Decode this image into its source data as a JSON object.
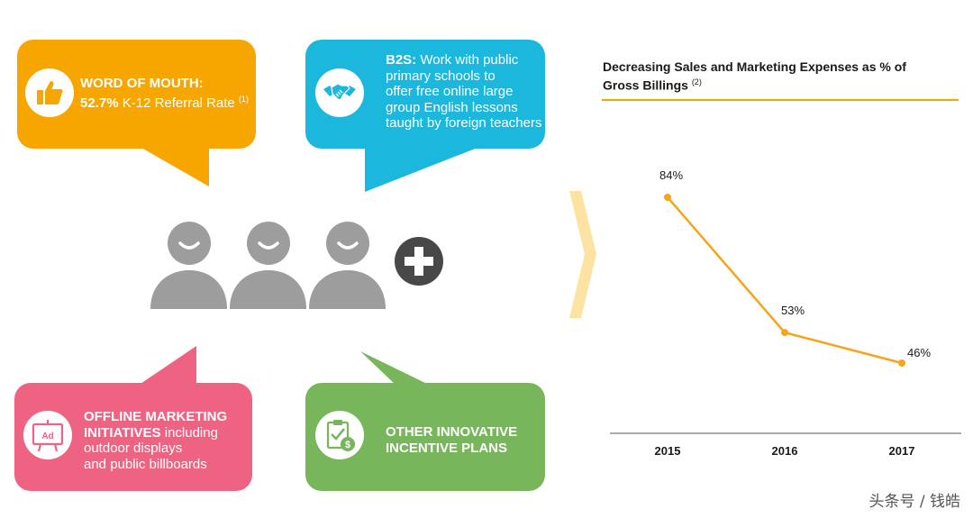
{
  "colors": {
    "orange": "#f7a600",
    "blue": "#1bb7dc",
    "pink": "#ef6382",
    "green": "#77b65b",
    "person": "#9d9d9d",
    "plus": "#484848",
    "arrow": "#fde3a1",
    "line": "#f6a41b"
  },
  "bubbles": {
    "word_of_mouth": {
      "title": "WORD OF MOUTH:",
      "stat": "52.7%",
      "stat_text": " K-12 Referral Rate ",
      "note": "(1)",
      "icon": "thumbs-up-icon"
    },
    "b2s": {
      "title": "B2S:",
      "lines": [
        "Work with public",
        "primary schools to",
        "offer free online large",
        "group English lessons",
        "taught by foreign teachers"
      ],
      "icon": "handshake-icon"
    },
    "offline": {
      "title_line1": "OFFLINE MARKETING",
      "title_line2": "INITIATIVES",
      "rest_line2": " including",
      "lines": [
        "outdoor displays",
        "and public billboards"
      ],
      "icon": "billboard-icon",
      "icon_text": "Ad"
    },
    "other": {
      "lines": [
        "OTHER INNOVATIVE",
        "INCENTIVE PLANS"
      ],
      "icon": "clipboard-dollar-icon"
    }
  },
  "chart_data": {
    "type": "line",
    "title_line1": "Decreasing Sales and Marketing Expenses as % of",
    "title_line2": "Gross Billings",
    "title_note": "(2)",
    "categories": [
      "2015",
      "2016",
      "2017"
    ],
    "values": [
      84,
      53,
      46
    ],
    "labels": [
      "84%",
      "53%",
      "46%"
    ],
    "unit": "%",
    "ylim": [
      0,
      100
    ],
    "grid": false,
    "legend": "none"
  },
  "watermark": "头条号 / 钱皓"
}
